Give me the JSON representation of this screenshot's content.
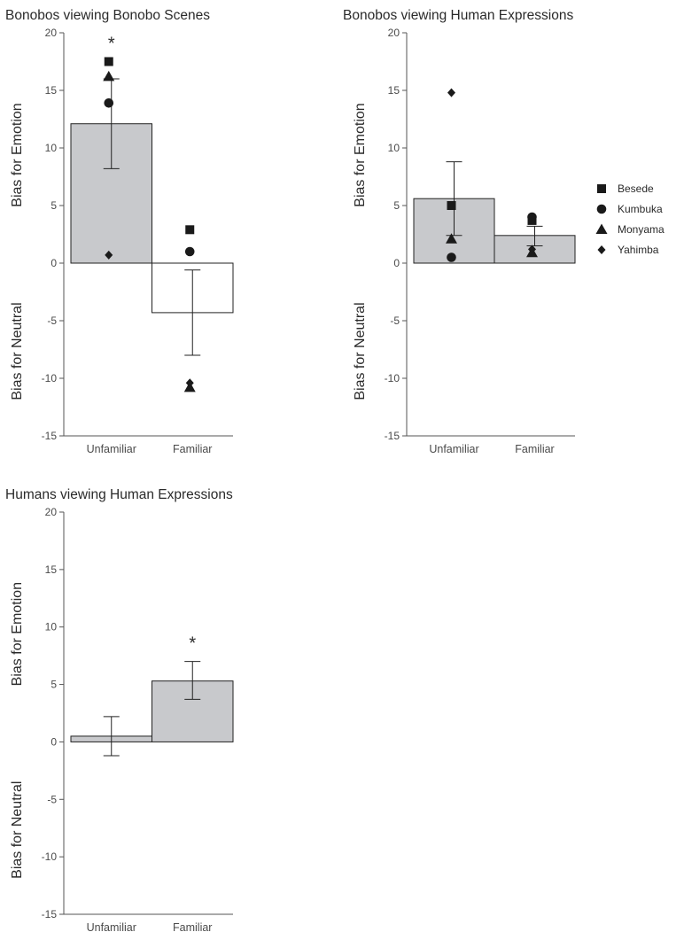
{
  "legend": {
    "entries": [
      {
        "name": "Besede",
        "marker": "square"
      },
      {
        "name": "Kumbuka",
        "marker": "circle"
      },
      {
        "name": "Monyama",
        "marker": "triangle"
      },
      {
        "name": "Yahimba",
        "marker": "diamond"
      }
    ]
  },
  "colors": {
    "bar_emotion": "#c8c9cc",
    "bar_neutral": "#ffffff",
    "ink": "#1a1a1a",
    "axis": "#555555"
  },
  "chart_data": [
    {
      "type": "bar",
      "title": "Bonobos viewing Bonobo Scenes",
      "ylabel_upper": "Bias for Emotion",
      "ylabel_lower": "Bias for Neutral",
      "ylim": [
        -15,
        20
      ],
      "yticks": [
        "20",
        "15",
        "10",
        "5",
        "0",
        "-5",
        "-10",
        "-15"
      ],
      "categories": [
        "Unfamiliar",
        "Familiar"
      ],
      "values": [
        12.1,
        -4.3
      ],
      "error_low": [
        8.2,
        -8.0
      ],
      "error_high": [
        16.0,
        -0.6
      ],
      "significance": [
        "*",
        ""
      ],
      "points": [
        {
          "individual": "Besede",
          "values": [
            17.5,
            2.9
          ]
        },
        {
          "individual": "Kumbuka",
          "values": [
            13.9,
            1.0
          ]
        },
        {
          "individual": "Monyama",
          "values": [
            16.2,
            -10.8
          ]
        },
        {
          "individual": "Yahimba",
          "values": [
            0.7,
            -10.4
          ]
        }
      ]
    },
    {
      "type": "bar",
      "title": "Bonobos viewing Human Expressions",
      "ylabel_upper": "Bias for Emotion",
      "ylabel_lower": "Bias for Neutral",
      "ylim": [
        -15,
        20
      ],
      "yticks": [
        "20",
        "15",
        "10",
        "5",
        "0",
        "-5",
        "-10",
        "-15"
      ],
      "categories": [
        "Unfamiliar",
        "Familiar"
      ],
      "values": [
        5.6,
        2.4
      ],
      "error_low": [
        2.4,
        1.5
      ],
      "error_high": [
        8.8,
        3.2
      ],
      "significance": [
        "",
        ""
      ],
      "points": [
        {
          "individual": "Besede",
          "values": [
            5.0,
            3.7
          ]
        },
        {
          "individual": "Kumbuka",
          "values": [
            0.5,
            4.0
          ]
        },
        {
          "individual": "Monyama",
          "values": [
            2.1,
            0.9
          ]
        },
        {
          "individual": "Yahimba",
          "values": [
            14.8,
            1.2
          ]
        }
      ]
    },
    {
      "type": "bar",
      "title": "Humans viewing Human Expressions",
      "ylabel_upper": "Bias for Emotion",
      "ylabel_lower": "Bias for Neutral",
      "ylim": [
        -15,
        20
      ],
      "yticks": [
        "20",
        "15",
        "10",
        "5",
        "0",
        "-5",
        "-10",
        "-15"
      ],
      "categories": [
        "Unfamiliar",
        "Familiar"
      ],
      "values": [
        0.5,
        5.3
      ],
      "error_low": [
        -1.2,
        3.7
      ],
      "error_high": [
        2.2,
        7.0
      ],
      "significance": [
        "",
        "*"
      ],
      "points": []
    }
  ]
}
